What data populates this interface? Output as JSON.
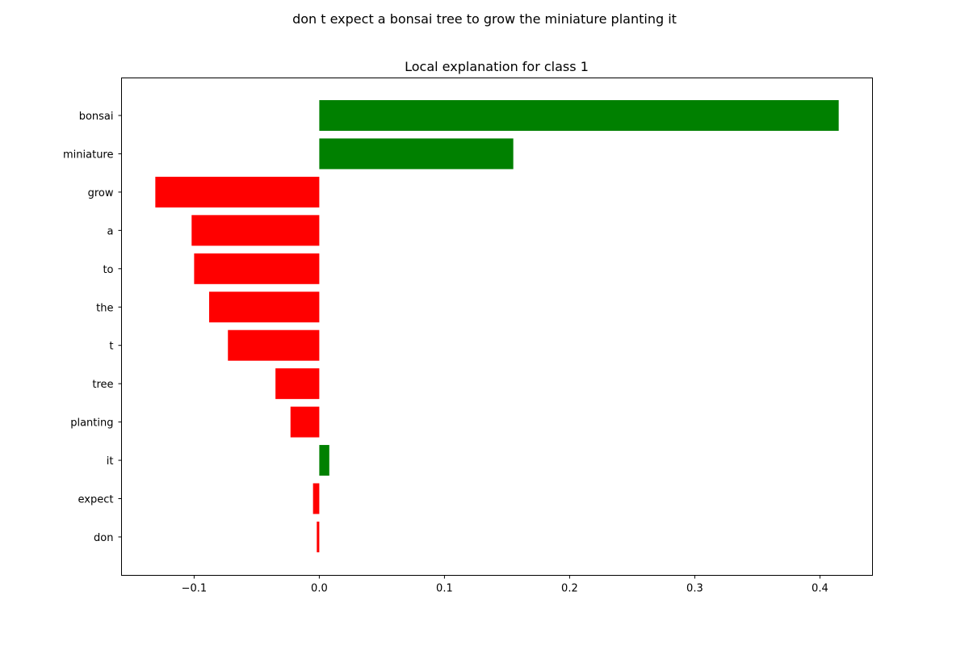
{
  "figure": {
    "suptitle": "don t expect a bonsai tree to grow the miniature planting it"
  },
  "chart_data": {
    "type": "bar",
    "orientation": "horizontal",
    "title": "Local explanation for class 1",
    "xlabel": "",
    "ylabel": "",
    "xlim": [
      -0.158,
      0.442
    ],
    "xticks": [
      -0.1,
      0.0,
      0.1,
      0.2,
      0.3,
      0.4
    ],
    "xtick_labels": [
      "−0.1",
      "0.0",
      "0.1",
      "0.2",
      "0.3",
      "0.4"
    ],
    "categories": [
      "bonsai",
      "miniature",
      "grow",
      "a",
      "to",
      "the",
      "t",
      "tree",
      "planting",
      "it",
      "expect",
      "don"
    ],
    "values": [
      0.415,
      0.155,
      -0.131,
      -0.102,
      -0.1,
      -0.088,
      -0.073,
      -0.035,
      -0.023,
      0.008,
      -0.005,
      -0.002
    ],
    "colors": {
      "positive": "#008000",
      "negative": "#ff0000"
    },
    "grid": false,
    "legend": "none"
  }
}
